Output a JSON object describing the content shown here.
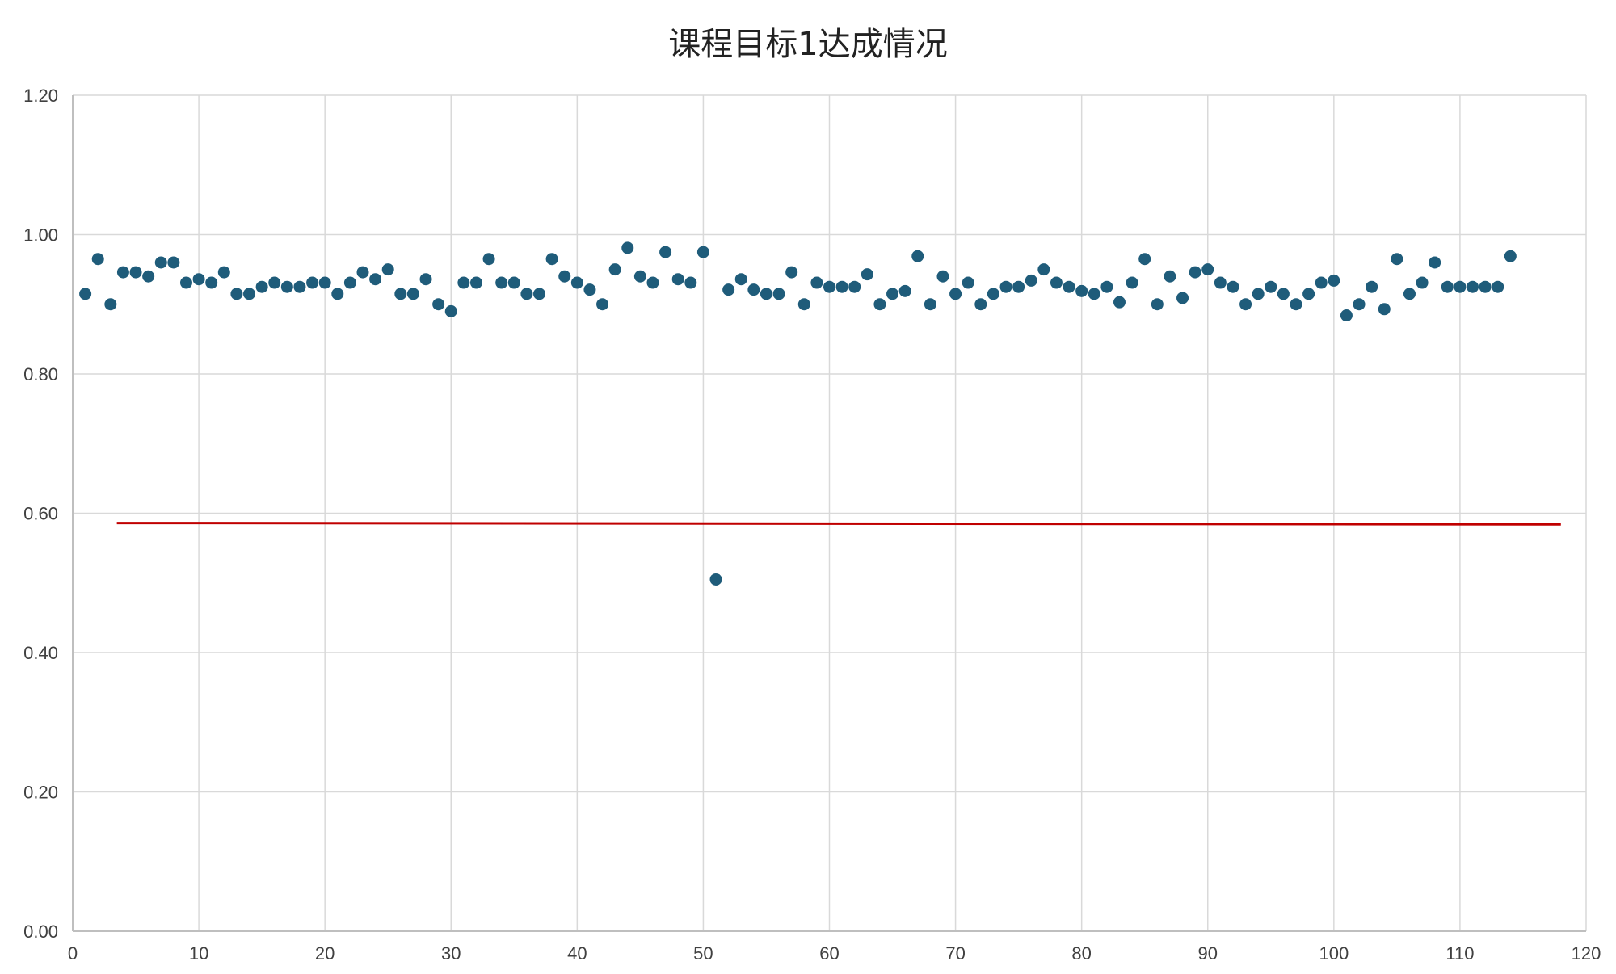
{
  "chart_data": {
    "type": "scatter",
    "title": "课程目标1达成情况",
    "xlabel": "",
    "ylabel": "",
    "xlim": [
      0,
      120
    ],
    "ylim": [
      0,
      1.2
    ],
    "xticks": [
      "0",
      "10",
      "20",
      "30",
      "40",
      "50",
      "60",
      "70",
      "80",
      "90",
      "100",
      "110",
      "120"
    ],
    "yticks": [
      "0.00",
      "0.20",
      "0.40",
      "0.60",
      "0.80",
      "1.00",
      "1.20"
    ],
    "grid": true,
    "colors": {
      "points": "#1f5c7a",
      "threshold": "#c00000",
      "grid": "#d9d9d9",
      "axis": "#bfbfbf"
    },
    "threshold_line": {
      "x": [
        3.5,
        118
      ],
      "y": [
        0.586,
        0.584
      ]
    },
    "series": [
      {
        "x": [
          1,
          2,
          3,
          4,
          5,
          6,
          7,
          8,
          9,
          10,
          11,
          12,
          13,
          14,
          15,
          16,
          17,
          18,
          19,
          20,
          21,
          22,
          23,
          24,
          25,
          26,
          27,
          28,
          29,
          30,
          31,
          32,
          33,
          34,
          35,
          36,
          37,
          38,
          39,
          40,
          41,
          42,
          43,
          44,
          45,
          46,
          47,
          48,
          49,
          50,
          51,
          52,
          53,
          54,
          55,
          56,
          57,
          58,
          59,
          60,
          61,
          62,
          63,
          64,
          65,
          66,
          67,
          68,
          69,
          70,
          71,
          72,
          73,
          74,
          75,
          76,
          77,
          78,
          79,
          80,
          81,
          82,
          83,
          84,
          85,
          86,
          87,
          88,
          89,
          90,
          91,
          92,
          93,
          94,
          95,
          96,
          97,
          98,
          99,
          100,
          101,
          102,
          103,
          104,
          105,
          106,
          107,
          108,
          109,
          110,
          111,
          112,
          113,
          114
        ],
        "y": [
          0.915,
          0.965,
          0.9,
          0.946,
          0.946,
          0.94,
          0.96,
          0.96,
          0.931,
          0.936,
          0.931,
          0.946,
          0.915,
          0.915,
          0.925,
          0.931,
          0.925,
          0.925,
          0.931,
          0.931,
          0.915,
          0.931,
          0.946,
          0.936,
          0.95,
          0.915,
          0.915,
          0.936,
          0.9,
          0.89,
          0.931,
          0.931,
          0.965,
          0.931,
          0.931,
          0.915,
          0.915,
          0.965,
          0.94,
          0.931,
          0.921,
          0.9,
          0.95,
          0.981,
          0.94,
          0.931,
          0.975,
          0.936,
          0.931,
          0.975,
          0.505,
          0.921,
          0.936,
          0.921,
          0.915,
          0.915,
          0.946,
          0.9,
          0.931,
          0.925,
          0.925,
          0.925,
          0.943,
          0.9,
          0.915,
          0.919,
          0.969,
          0.9,
          0.94,
          0.915,
          0.931,
          0.9,
          0.915,
          0.925,
          0.925,
          0.934,
          0.95,
          0.931,
          0.925,
          0.919,
          0.915,
          0.925,
          0.903,
          0.931,
          0.965,
          0.9,
          0.94,
          0.909,
          0.946,
          0.95,
          0.931,
          0.925,
          0.9,
          0.915,
          0.925,
          0.915,
          0.9,
          0.915,
          0.931,
          0.934,
          0.884,
          0.9,
          0.925,
          0.893,
          0.965,
          0.915,
          0.931,
          0.96,
          0.925,
          0.925,
          0.925,
          0.925,
          0.925,
          0.969
        ]
      }
    ]
  }
}
